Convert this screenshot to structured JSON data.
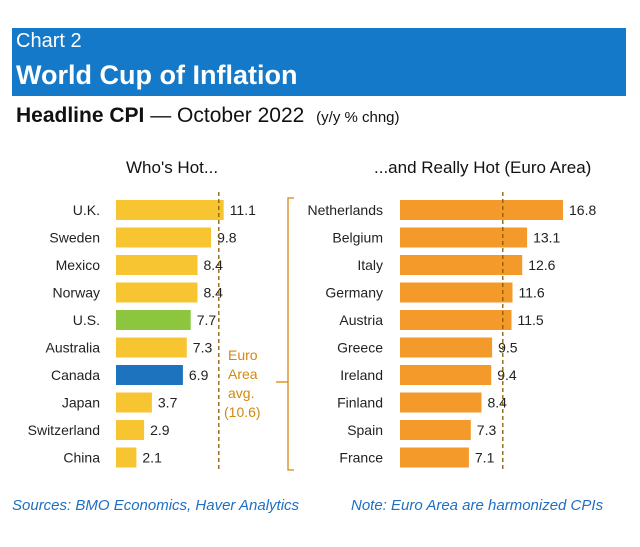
{
  "header": {
    "label": "Chart 2",
    "title": "World Cup of Inflation"
  },
  "subtitle": {
    "bold": "Headline CPI",
    "rest": "— October 2022",
    "units": "(y/y % chng)"
  },
  "left_panel": {
    "title": "Who's Hot..."
  },
  "right_panel": {
    "title": "...and Really Hot (Euro Area)"
  },
  "annotation": {
    "lines": [
      "Euro",
      "Area",
      "avg.",
      "(10.6)"
    ]
  },
  "footer": {
    "sources": "Sources: BMO Economics, Haver Analytics",
    "note": "Note: Euro Area are harmonized CPIs"
  },
  "colors": {
    "banner": "#1479c8",
    "yellow": "#f7c531",
    "green": "#8cc63f",
    "blue": "#1e73be",
    "orange": "#f39a2b",
    "reference_line": "#8a5a00",
    "annotation": "#d4880f"
  },
  "chart_data": [
    {
      "type": "bar",
      "orientation": "horizontal",
      "title": "Who's Hot...",
      "categories": [
        "U.K.",
        "Sweden",
        "Mexico",
        "Norway",
        "U.S.",
        "Australia",
        "Canada",
        "Japan",
        "Switzerland",
        "China"
      ],
      "values": [
        11.1,
        9.8,
        8.4,
        8.4,
        7.7,
        7.3,
        6.9,
        3.7,
        2.9,
        2.1
      ],
      "highlight": {
        "U.S.": "green",
        "Canada": "blue"
      },
      "reference_line": {
        "value": 10.6,
        "label": "Euro Area avg. (10.6)"
      },
      "xlim": [
        0,
        17.5
      ]
    },
    {
      "type": "bar",
      "orientation": "horizontal",
      "title": "...and Really Hot (Euro Area)",
      "categories": [
        "Netherlands",
        "Belgium",
        "Italy",
        "Germany",
        "Austria",
        "Greece",
        "Ireland",
        "Finland",
        "Spain",
        "France"
      ],
      "values": [
        16.8,
        13.1,
        12.6,
        11.6,
        11.5,
        9.5,
        9.4,
        8.4,
        7.3,
        7.1
      ],
      "reference_line": {
        "value": 10.6
      },
      "xlim": [
        0,
        17.5
      ]
    }
  ]
}
